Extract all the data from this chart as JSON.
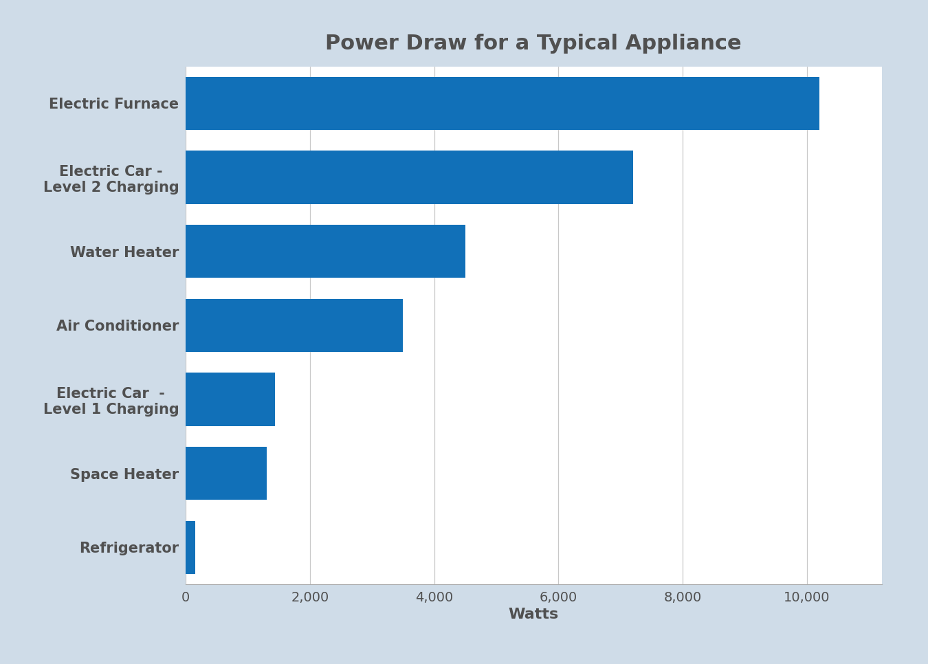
{
  "title": "Power Draw for a Typical Appliance",
  "categories": [
    "Electric Furnace",
    "Electric Car -\nLevel 2 Charging",
    "Water Heater",
    "Air Conditioner",
    "Electric Car  -\nLevel 1 Charging",
    "Space Heater",
    "Refrigerator"
  ],
  "values": [
    10200,
    7200,
    4500,
    3500,
    1440,
    1300,
    150
  ],
  "bar_color": "#1170B8",
  "background_color": "#cfdce8",
  "plot_background_color": "#ffffff",
  "xlabel": "Watts",
  "xlim": [
    0,
    11200
  ],
  "xticks": [
    0,
    2000,
    4000,
    6000,
    8000,
    10000
  ],
  "xtick_labels": [
    "0",
    "2,000",
    "4,000",
    "6,000",
    "8,000",
    "10,000"
  ],
  "title_fontsize": 22,
  "label_fontsize": 15,
  "tick_fontsize": 14,
  "xlabel_fontsize": 16,
  "label_color": "#505050",
  "tick_color": "#505050",
  "bar_height": 0.72
}
